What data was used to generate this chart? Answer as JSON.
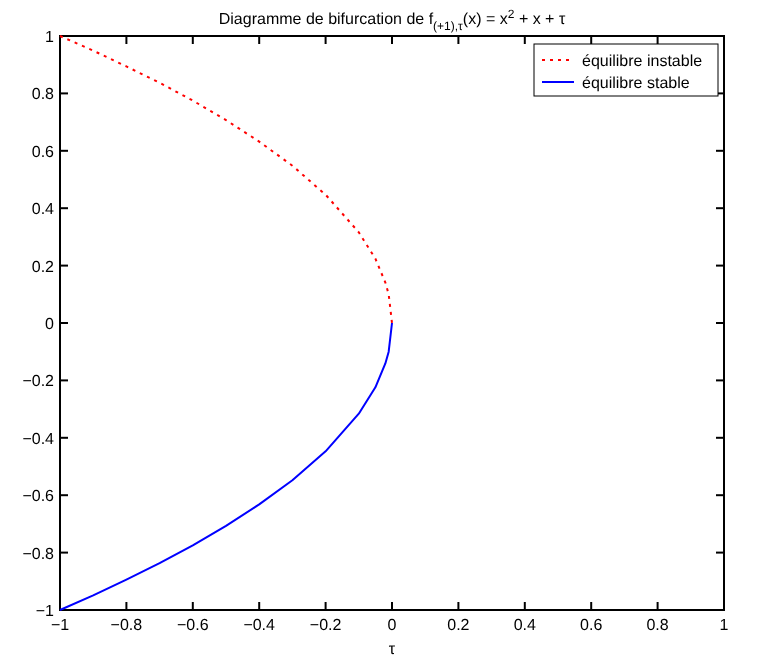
{
  "chart_data": {
    "type": "line",
    "title": "Diagramme de bifurcation de f$_{(+1),τ}$(x) = x$^{2}$ + x + τ",
    "xlabel": "τ",
    "series": [
      {
        "name": "équilibre instable",
        "color": "#ff0000",
        "line_style": "dotted",
        "x": [
          -1,
          -0.9,
          -0.8,
          -0.7,
          -0.6,
          -0.5,
          -0.4,
          -0.3,
          -0.2,
          -0.1,
          -0.05,
          -0.02,
          -0.01,
          0
        ],
        "values": [
          1,
          0.949,
          0.894,
          0.837,
          0.775,
          0.707,
          0.632,
          0.548,
          0.447,
          0.316,
          0.224,
          0.141,
          0.1,
          0
        ]
      },
      {
        "name": "équilibre stable",
        "color": "#0000ff",
        "line_style": "solid",
        "x": [
          -1,
          -0.9,
          -0.8,
          -0.7,
          -0.6,
          -0.5,
          -0.4,
          -0.3,
          -0.2,
          -0.1,
          -0.05,
          -0.02,
          -0.01,
          0
        ],
        "values": [
          -1,
          -0.949,
          -0.894,
          -0.837,
          -0.775,
          -0.707,
          -0.632,
          -0.548,
          -0.447,
          -0.316,
          -0.224,
          -0.141,
          -0.1,
          0
        ]
      }
    ],
    "xlim": [
      -1,
      1
    ],
    "ylim": [
      -1,
      1
    ],
    "xticks": [
      {
        "value": -1,
        "label": "−1"
      },
      {
        "value": -0.8,
        "label": "−0.8"
      },
      {
        "value": -0.6,
        "label": "−0.6"
      },
      {
        "value": -0.4,
        "label": "−0.4"
      },
      {
        "value": -0.2,
        "label": "−0.2"
      },
      0,
      0.2,
      0.4,
      0.6,
      0.8,
      1
    ],
    "yticks": [
      {
        "value": -1,
        "label": "−1"
      },
      {
        "value": -0.8,
        "label": "−0.8"
      },
      {
        "value": -0.6,
        "label": "−0.6"
      },
      {
        "value": -0.4,
        "label": "−0.4"
      },
      {
        "value": -0.2,
        "label": "−0.2"
      },
      0,
      0.2,
      0.4,
      0.6,
      0.8,
      1
    ],
    "grid": false,
    "legend": "top right",
    "marker": "none"
  }
}
